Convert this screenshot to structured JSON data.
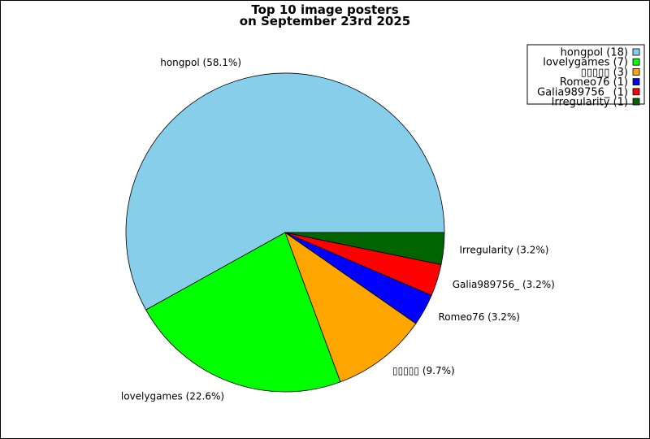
{
  "chart_data": {
    "type": "pie",
    "title_lines": [
      "Top 10 image posters",
      "on September 23rd 2025"
    ],
    "series": [
      {
        "name": "hongpol",
        "count": 18,
        "percent_label": "58.1%",
        "color": "#87ceeb"
      },
      {
        "name": "lovelygames",
        "count": 7,
        "percent_label": "22.6%",
        "color": "#00ff00"
      },
      {
        "name": "▯▯▯▯▯",
        "count": 3,
        "percent_label": "9.7%",
        "color": "#ffa500"
      },
      {
        "name": "Romeo76",
        "count": 1,
        "percent_label": "3.2%",
        "color": "#0000ff"
      },
      {
        "name": "Galia989756_",
        "count": 1,
        "percent_label": "3.2%",
        "color": "#ff0000"
      },
      {
        "name": "Irregularity",
        "count": 1,
        "percent_label": "3.2%",
        "color": "#006400"
      }
    ],
    "start_angle": "east (0°), counterclockwise",
    "legend_position": "top-right"
  }
}
